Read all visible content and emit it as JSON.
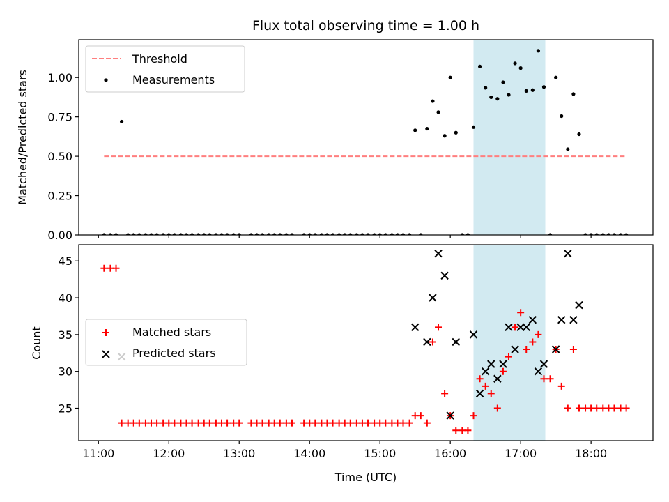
{
  "chart_data": [
    {
      "type": "scatter",
      "title": "Flux total observing time = 1.00 h",
      "xlabel": "",
      "ylabel": "Matched/Predicted stars",
      "xlim": [
        10.72,
        18.88
      ],
      "ylim": [
        0.0,
        1.24
      ],
      "yticks": [
        0.0,
        0.25,
        0.5,
        0.75,
        1.0
      ],
      "ytick_labels": [
        "0.00",
        "0.25",
        "0.50",
        "0.75",
        "1.00"
      ],
      "xticks": [
        11,
        12,
        13,
        14,
        15,
        16,
        17,
        18
      ],
      "xtick_labels_shown": false,
      "shaded_span": [
        16.33,
        17.35
      ],
      "shade_color": "#add8e6",
      "legend_position": "upper left",
      "threshold": {
        "name": "Threshold",
        "value": 0.5,
        "x_range": [
          11.08,
          18.5
        ],
        "color": "#ff7f7f",
        "style": "dashed"
      },
      "series": [
        {
          "name": "Measurements",
          "color": "#000000",
          "marker": "dot",
          "points": [
            [
              11.08,
              0
            ],
            [
              11.17,
              0
            ],
            [
              11.25,
              0
            ],
            [
              11.33,
              0.72
            ],
            [
              11.42,
              0
            ],
            [
              11.5,
              0
            ],
            [
              11.58,
              0
            ],
            [
              11.67,
              0
            ],
            [
              11.75,
              0
            ],
            [
              11.83,
              0
            ],
            [
              11.92,
              0
            ],
            [
              12.0,
              0
            ],
            [
              12.08,
              0
            ],
            [
              12.17,
              0
            ],
            [
              12.25,
              0
            ],
            [
              12.33,
              0
            ],
            [
              12.42,
              0
            ],
            [
              12.5,
              0
            ],
            [
              12.58,
              0
            ],
            [
              12.67,
              0
            ],
            [
              12.75,
              0
            ],
            [
              12.83,
              0
            ],
            [
              12.92,
              0
            ],
            [
              13.0,
              0
            ],
            [
              13.17,
              0
            ],
            [
              13.25,
              0
            ],
            [
              13.33,
              0
            ],
            [
              13.42,
              0
            ],
            [
              13.5,
              0
            ],
            [
              13.58,
              0
            ],
            [
              13.67,
              0
            ],
            [
              13.75,
              0
            ],
            [
              13.92,
              0
            ],
            [
              14.0,
              0
            ],
            [
              14.08,
              0
            ],
            [
              14.17,
              0
            ],
            [
              14.25,
              0
            ],
            [
              14.33,
              0
            ],
            [
              14.42,
              0
            ],
            [
              14.5,
              0
            ],
            [
              14.58,
              0
            ],
            [
              14.67,
              0
            ],
            [
              14.75,
              0
            ],
            [
              14.83,
              0
            ],
            [
              14.92,
              0
            ],
            [
              15.0,
              0
            ],
            [
              15.08,
              0
            ],
            [
              15.17,
              0
            ],
            [
              15.25,
              0
            ],
            [
              15.33,
              0
            ],
            [
              15.42,
              0
            ],
            [
              15.5,
              0.665
            ],
            [
              15.58,
              0
            ],
            [
              15.67,
              0.675
            ],
            [
              15.75,
              0.85
            ],
            [
              15.83,
              0.78
            ],
            [
              15.92,
              0.63
            ],
            [
              16.0,
              1.0
            ],
            [
              16.08,
              0.65
            ],
            [
              16.17,
              0
            ],
            [
              16.25,
              0
            ],
            [
              16.33,
              0.685
            ],
            [
              16.42,
              1.07
            ],
            [
              16.5,
              0.935
            ],
            [
              16.58,
              0.875
            ],
            [
              16.67,
              0.865
            ],
            [
              16.75,
              0.97
            ],
            [
              16.83,
              0.89
            ],
            [
              16.92,
              1.09
            ],
            [
              17.0,
              1.06
            ],
            [
              17.08,
              0.915
            ],
            [
              17.17,
              0.92
            ],
            [
              17.25,
              1.17
            ],
            [
              17.33,
              0.94
            ],
            [
              17.42,
              0
            ],
            [
              17.5,
              1.0
            ],
            [
              17.58,
              0.755
            ],
            [
              17.67,
              0.545
            ],
            [
              17.75,
              0.895
            ],
            [
              17.83,
              0.64
            ],
            [
              17.92,
              0
            ],
            [
              18.0,
              0
            ],
            [
              18.08,
              0
            ],
            [
              18.17,
              0
            ],
            [
              18.25,
              0
            ],
            [
              18.33,
              0
            ],
            [
              18.42,
              0
            ],
            [
              18.5,
              0
            ]
          ]
        }
      ]
    },
    {
      "type": "scatter",
      "title": "",
      "xlabel": "Time (UTC)",
      "ylabel": "Count",
      "xlim": [
        10.72,
        18.88
      ],
      "ylim": [
        20.6,
        47.2
      ],
      "yticks": [
        25,
        30,
        35,
        40,
        45
      ],
      "ytick_labels": [
        "25",
        "30",
        "35",
        "40",
        "45"
      ],
      "xticks": [
        11,
        12,
        13,
        14,
        15,
        16,
        17,
        18
      ],
      "xtick_labels": [
        "11:00",
        "12:00",
        "13:00",
        "14:00",
        "15:00",
        "16:00",
        "17:00",
        "18:00"
      ],
      "shaded_span": [
        16.33,
        17.35
      ],
      "shade_color": "#add8e6",
      "legend_position": "center left",
      "series": [
        {
          "name": "Matched stars",
          "color": "#ff0000",
          "marker": "plus",
          "points": [
            [
              11.08,
              44
            ],
            [
              11.17,
              44
            ],
            [
              11.25,
              44
            ],
            [
              11.33,
              23
            ],
            [
              11.42,
              23
            ],
            [
              11.5,
              23
            ],
            [
              11.58,
              23
            ],
            [
              11.67,
              23
            ],
            [
              11.75,
              23
            ],
            [
              11.83,
              23
            ],
            [
              11.92,
              23
            ],
            [
              12.0,
              23
            ],
            [
              12.08,
              23
            ],
            [
              12.17,
              23
            ],
            [
              12.25,
              23
            ],
            [
              12.33,
              23
            ],
            [
              12.42,
              23
            ],
            [
              12.5,
              23
            ],
            [
              12.58,
              23
            ],
            [
              12.67,
              23
            ],
            [
              12.75,
              23
            ],
            [
              12.83,
              23
            ],
            [
              12.92,
              23
            ],
            [
              13.0,
              23
            ],
            [
              13.17,
              23
            ],
            [
              13.25,
              23
            ],
            [
              13.33,
              23
            ],
            [
              13.42,
              23
            ],
            [
              13.5,
              23
            ],
            [
              13.58,
              23
            ],
            [
              13.67,
              23
            ],
            [
              13.75,
              23
            ],
            [
              13.92,
              23
            ],
            [
              14.0,
              23
            ],
            [
              14.08,
              23
            ],
            [
              14.17,
              23
            ],
            [
              14.25,
              23
            ],
            [
              14.33,
              23
            ],
            [
              14.42,
              23
            ],
            [
              14.5,
              23
            ],
            [
              14.58,
              23
            ],
            [
              14.67,
              23
            ],
            [
              14.75,
              23
            ],
            [
              14.83,
              23
            ],
            [
              14.92,
              23
            ],
            [
              15.0,
              23
            ],
            [
              15.08,
              23
            ],
            [
              15.17,
              23
            ],
            [
              15.25,
              23
            ],
            [
              15.33,
              23
            ],
            [
              15.42,
              23
            ],
            [
              15.5,
              24
            ],
            [
              15.58,
              24
            ],
            [
              15.67,
              23
            ],
            [
              15.75,
              34
            ],
            [
              15.83,
              36
            ],
            [
              15.92,
              27
            ],
            [
              16.0,
              24
            ],
            [
              16.08,
              22
            ],
            [
              16.17,
              22
            ],
            [
              16.25,
              22
            ],
            [
              16.33,
              24
            ],
            [
              16.42,
              29
            ],
            [
              16.5,
              28
            ],
            [
              16.58,
              27
            ],
            [
              16.67,
              25
            ],
            [
              16.75,
              30
            ],
            [
              16.83,
              32
            ],
            [
              16.92,
              36
            ],
            [
              17.0,
              38
            ],
            [
              17.08,
              33
            ],
            [
              17.17,
              34
            ],
            [
              17.25,
              35
            ],
            [
              17.33,
              29
            ],
            [
              17.42,
              29
            ],
            [
              17.5,
              33
            ],
            [
              17.58,
              28
            ],
            [
              17.67,
              25
            ],
            [
              17.75,
              33
            ],
            [
              17.83,
              25
            ],
            [
              17.92,
              25
            ],
            [
              18.0,
              25
            ],
            [
              18.08,
              25
            ],
            [
              18.17,
              25
            ],
            [
              18.25,
              25
            ],
            [
              18.33,
              25
            ],
            [
              18.42,
              25
            ],
            [
              18.5,
              25
            ]
          ]
        },
        {
          "name": "Predicted stars",
          "color": "#000000",
          "marker": "x",
          "points": [
            [
              11.33,
              32
            ],
            [
              15.5,
              36
            ],
            [
              15.67,
              34
            ],
            [
              15.75,
              40
            ],
            [
              15.83,
              46
            ],
            [
              15.92,
              43
            ],
            [
              16.0,
              24
            ],
            [
              16.08,
              34
            ],
            [
              16.33,
              35
            ],
            [
              16.42,
              27
            ],
            [
              16.5,
              30
            ],
            [
              16.58,
              31
            ],
            [
              16.67,
              29
            ],
            [
              16.75,
              31
            ],
            [
              16.83,
              36
            ],
            [
              16.92,
              33
            ],
            [
              17.0,
              36
            ],
            [
              17.08,
              36
            ],
            [
              17.17,
              37
            ],
            [
              17.25,
              30
            ],
            [
              17.33,
              31
            ],
            [
              17.5,
              33
            ],
            [
              17.58,
              37
            ],
            [
              17.67,
              46
            ],
            [
              17.75,
              37
            ],
            [
              17.83,
              39
            ]
          ]
        }
      ]
    }
  ]
}
